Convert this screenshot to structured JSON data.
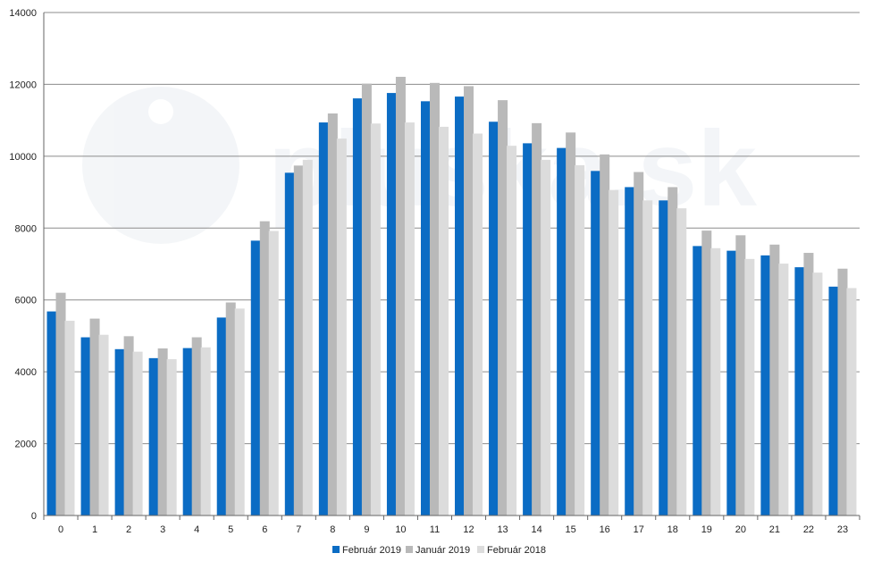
{
  "chart_data": {
    "type": "bar",
    "title": "",
    "xlabel": "",
    "ylabel": "",
    "ylim": [
      0,
      14000
    ],
    "yticks": [
      0,
      2000,
      4000,
      6000,
      8000,
      10000,
      12000,
      14000
    ],
    "grid": true,
    "legend_position": "bottom-center",
    "categories": [
      "0",
      "1",
      "2",
      "3",
      "4",
      "5",
      "6",
      "7",
      "8",
      "9",
      "10",
      "11",
      "12",
      "13",
      "14",
      "15",
      "16",
      "17",
      "18",
      "19",
      "20",
      "21",
      "22",
      "23"
    ],
    "series": [
      {
        "name": "Február 2019",
        "color": "#0b6cc4",
        "values": [
          5680,
          4960,
          4630,
          4380,
          4660,
          5510,
          7650,
          9540,
          10940,
          11610,
          11760,
          11530,
          11660,
          10960,
          10360,
          10230,
          9590,
          9140,
          8770,
          7500,
          7370,
          7240,
          6910,
          6370
        ]
      },
      {
        "name": "Január 2019",
        "color": "#b9b9b9",
        "values": [
          6200,
          5480,
          4990,
          4650,
          4960,
          5930,
          8190,
          9740,
          11190,
          12020,
          12210,
          12040,
          11950,
          11560,
          10920,
          10660,
          10050,
          9560,
          9140,
          7930,
          7800,
          7540,
          7310,
          6870
        ]
      },
      {
        "name": "Február 2018",
        "color": "#dcdcdc",
        "values": [
          5420,
          5030,
          4560,
          4350,
          4680,
          5760,
          7920,
          9900,
          10490,
          10910,
          10940,
          10820,
          10630,
          10290,
          9900,
          9750,
          9060,
          8770,
          8550,
          7440,
          7140,
          7010,
          6760,
          6330
        ]
      }
    ]
  },
  "watermark": {
    "text": "pluska.sk"
  }
}
